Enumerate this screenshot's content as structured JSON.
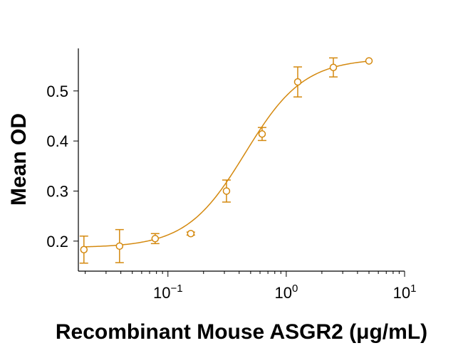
{
  "chart_data": {
    "type": "scatter",
    "xlabel": "Recombinant Mouse ASGR2 (μg/mL)",
    "ylabel": "Mean OD",
    "x_scale": "log",
    "xlim": [
      0.0175,
      10
    ],
    "ylim": [
      0.14,
      0.585
    ],
    "x_ticks": [
      {
        "value": 0.1,
        "base": "10",
        "exp": "−1"
      },
      {
        "value": 1,
        "base": "10",
        "exp": "0"
      },
      {
        "value": 10,
        "base": "10",
        "exp": "1"
      }
    ],
    "y_ticks": [
      {
        "value": 0.2,
        "label": "0.2"
      },
      {
        "value": 0.3,
        "label": "0.3"
      },
      {
        "value": 0.4,
        "label": "0.4"
      },
      {
        "value": 0.5,
        "label": "0.5"
      }
    ],
    "color": "#d4890f",
    "grid": false,
    "legend": "none",
    "series": [
      {
        "x": [
          0.0195,
          0.039,
          0.078,
          0.156,
          0.3125,
          0.625,
          1.25,
          2.5,
          5
        ],
        "y": [
          0.183,
          0.19,
          0.205,
          0.215,
          0.3,
          0.414,
          0.518,
          0.547,
          0.56
        ],
        "err": [
          0.027,
          0.033,
          0.01,
          0.003,
          0.022,
          0.013,
          0.03,
          0.019,
          0.0
        ]
      }
    ],
    "fit": {
      "bottom": 0.187,
      "top": 0.565,
      "ec50": 0.45,
      "hill": 1.75
    }
  }
}
